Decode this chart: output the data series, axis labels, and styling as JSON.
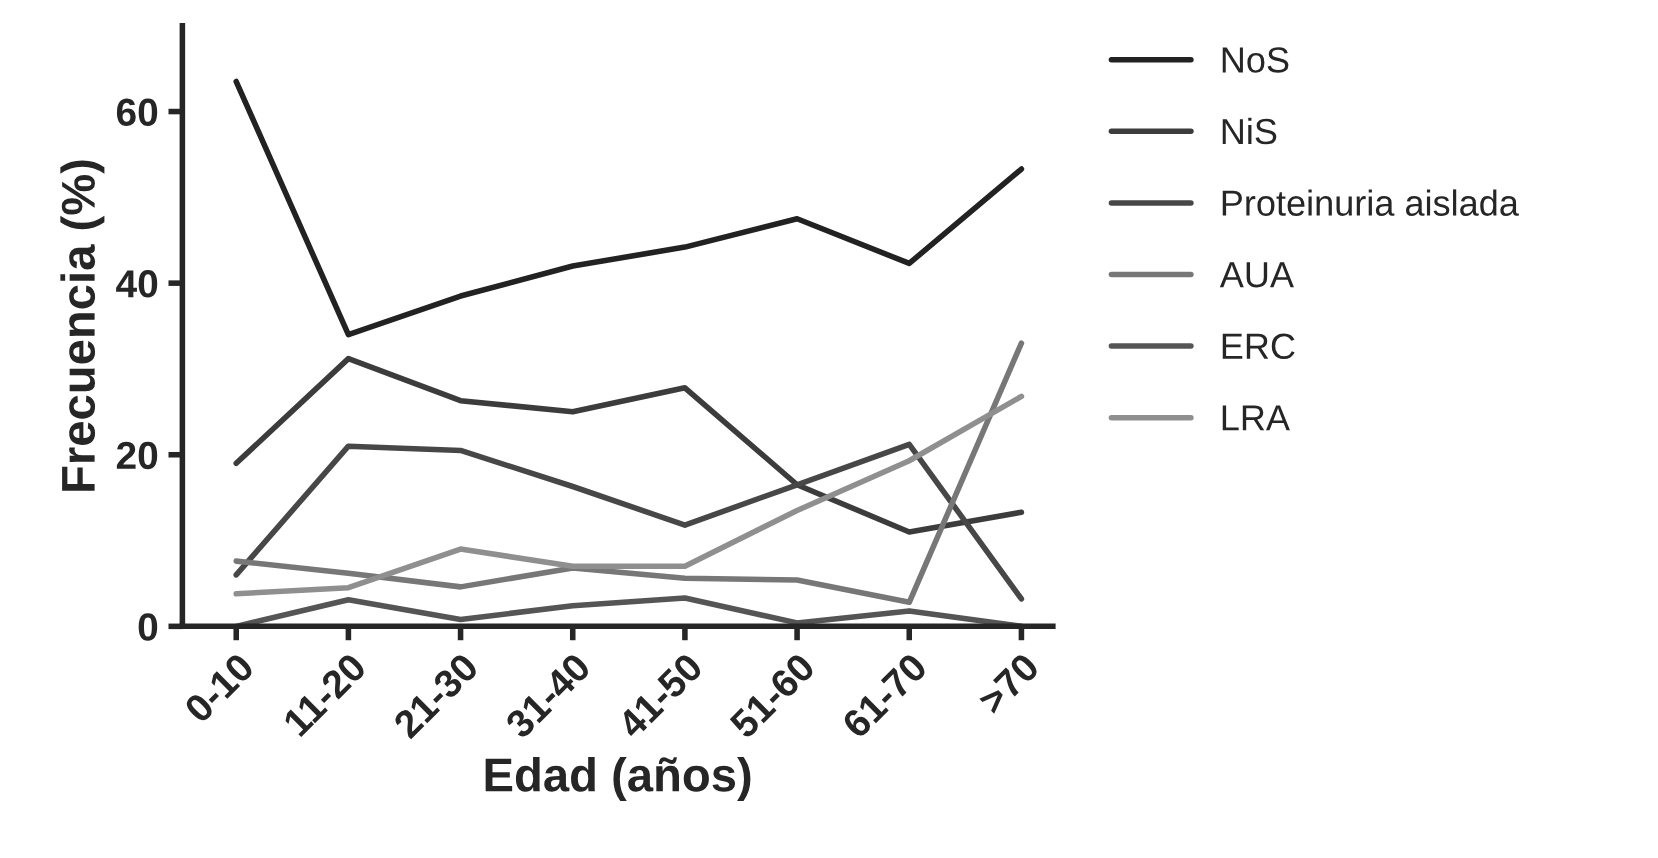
{
  "chart_data": {
    "type": "line",
    "xlabel": "Edad (años)",
    "ylabel": "Frecuencia (%)",
    "categories": [
      "0-10",
      "11-20",
      "21-30",
      "31-40",
      "41-50",
      "51-60",
      "61-70",
      ">70"
    ],
    "series": [
      {
        "name": "NoS",
        "color": "#222222",
        "values": [
          63.5,
          34,
          38.5,
          42,
          44.2,
          47.5,
          42.3,
          53.3
        ]
      },
      {
        "name": "NiS",
        "color": "#3c3c3c",
        "values": [
          19,
          31.2,
          26.3,
          25,
          27.8,
          16.5,
          11,
          13.3
        ]
      },
      {
        "name": "Proteinuria aislada",
        "color": "#474747",
        "values": [
          6,
          21,
          20.5,
          16.3,
          11.8,
          16.5,
          21.2,
          3.2
        ]
      },
      {
        "name": "AUA",
        "color": "#777777",
        "values": [
          7.6,
          6.2,
          4.6,
          6.8,
          5.6,
          5.4,
          2.8,
          33
        ]
      },
      {
        "name": "ERC",
        "color": "#555555",
        "values": [
          0,
          3.1,
          0.8,
          2.4,
          3.3,
          0.4,
          1.8,
          0
        ]
      },
      {
        "name": "LRA",
        "color": "#8f8f8f",
        "values": [
          3.8,
          4.5,
          9,
          7,
          7,
          13.5,
          19.3,
          26.8
        ]
      }
    ],
    "ylim": [
      0,
      70
    ],
    "yticks": [
      0,
      20,
      40,
      60
    ],
    "grid": false,
    "legend": "top right",
    "marker": "none",
    "line_style": "solid"
  }
}
